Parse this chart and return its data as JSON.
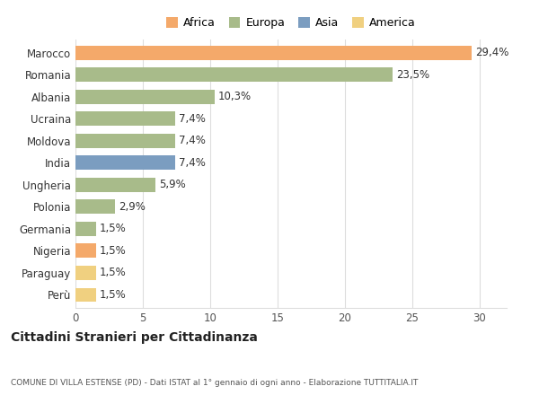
{
  "categories": [
    "Marocco",
    "Romania",
    "Albania",
    "Ucraina",
    "Moldova",
    "India",
    "Ungheria",
    "Polonia",
    "Germania",
    "Nigeria",
    "Paraguay",
    "Perù"
  ],
  "values": [
    29.4,
    23.5,
    10.3,
    7.4,
    7.4,
    7.4,
    5.9,
    2.9,
    1.5,
    1.5,
    1.5,
    1.5
  ],
  "labels": [
    "29,4%",
    "23,5%",
    "10,3%",
    "7,4%",
    "7,4%",
    "7,4%",
    "5,9%",
    "2,9%",
    "1,5%",
    "1,5%",
    "1,5%",
    "1,5%"
  ],
  "colors": [
    "#F4A96A",
    "#A8BB8A",
    "#A8BB8A",
    "#A8BB8A",
    "#A8BB8A",
    "#7B9DC0",
    "#A8BB8A",
    "#A8BB8A",
    "#A8BB8A",
    "#F4A96A",
    "#F0D080",
    "#F0D080"
  ],
  "legend_items": [
    {
      "label": "Africa",
      "color": "#F4A96A"
    },
    {
      "label": "Europa",
      "color": "#A8BB8A"
    },
    {
      "label": "Asia",
      "color": "#7B9DC0"
    },
    {
      "label": "America",
      "color": "#F0D080"
    }
  ],
  "xlim": [
    0,
    32
  ],
  "xticks": [
    0,
    5,
    10,
    15,
    20,
    25,
    30
  ],
  "title_main": "Cittadini Stranieri per Cittadinanza",
  "title_sub": "COMUNE DI VILLA ESTENSE (PD) - Dati ISTAT al 1° gennaio di ogni anno - Elaborazione TUTTITALIA.IT",
  "background_color": "#ffffff",
  "grid_color": "#dddddd",
  "bar_height": 0.65,
  "label_fontsize": 8.5,
  "tick_fontsize": 8.5
}
